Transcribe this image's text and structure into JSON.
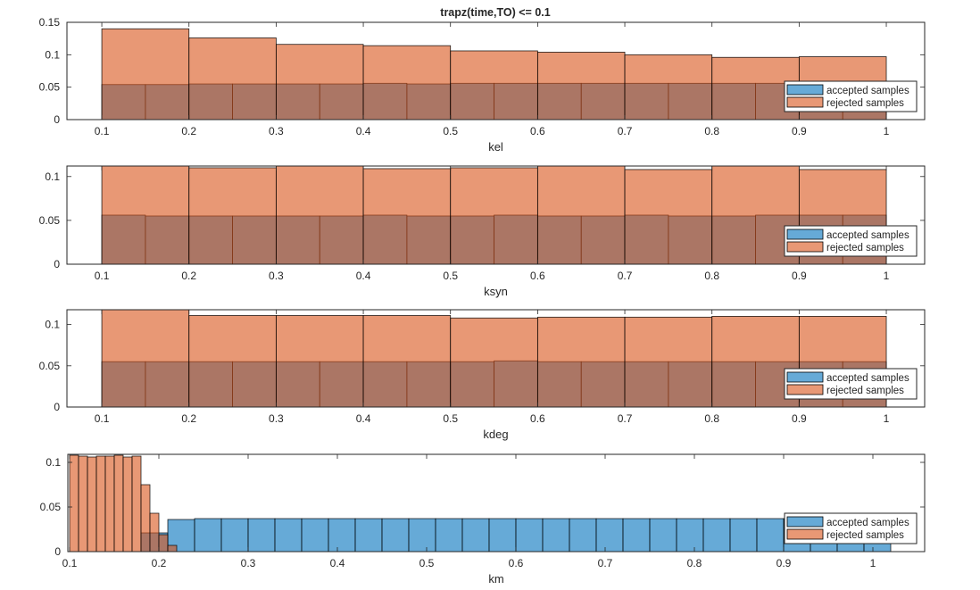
{
  "figure_title": "trapz(time,TO) <= 0.1",
  "colors": {
    "accepted": "#0072BD",
    "rejected": "#D95319",
    "face_alpha": 0.6
  },
  "chart_data": [
    {
      "type": "bar",
      "subtype": "histogram",
      "title": "trapz(time,TO) <= 0.1",
      "xlabel": "kel",
      "xlim": [
        0.06,
        1.044
      ],
      "ylim": [
        0,
        0.15
      ],
      "xticks": [
        "0.1",
        "0.2",
        "0.3",
        "0.4",
        "0.5",
        "0.6",
        "0.7",
        "0.8",
        "0.9",
        "1"
      ],
      "yticks": [
        "0",
        "0.05",
        "0.1",
        "0.15"
      ],
      "legend": {
        "placement": "bottom-right",
        "entries": [
          "accepted samples",
          "rejected samples"
        ]
      },
      "series": [
        {
          "name": "accepted samples",
          "bin_start": 0.1,
          "bin_width": 0.05,
          "values": [
            0.054,
            0.054,
            0.055,
            0.055,
            0.055,
            0.055,
            0.056,
            0.055,
            0.056,
            0.056,
            0.056,
            0.056,
            0.056,
            0.056,
            0.056,
            0.056,
            0.056,
            0.056
          ]
        },
        {
          "name": "rejected samples",
          "bin_start": 0.1,
          "bin_width": 0.1,
          "values": [
            0.14,
            0.126,
            0.116,
            0.114,
            0.106,
            0.104,
            0.1,
            0.096,
            0.097
          ]
        }
      ]
    },
    {
      "type": "bar",
      "subtype": "histogram",
      "xlabel": "ksyn",
      "xlim": [
        0.06,
        1.044
      ],
      "ylim": [
        0,
        0.112
      ],
      "xticks": [
        "0.1",
        "0.2",
        "0.3",
        "0.4",
        "0.5",
        "0.6",
        "0.7",
        "0.8",
        "0.9",
        "1"
      ],
      "yticks": [
        "0",
        "0.05",
        "0.1"
      ],
      "legend": {
        "placement": "bottom-right",
        "entries": [
          "accepted samples",
          "rejected samples"
        ]
      },
      "series": [
        {
          "name": "accepted samples",
          "bin_start": 0.1,
          "bin_width": 0.05,
          "values": [
            0.056,
            0.055,
            0.055,
            0.055,
            0.055,
            0.055,
            0.056,
            0.055,
            0.055,
            0.056,
            0.055,
            0.055,
            0.056,
            0.055,
            0.055,
            0.056,
            0.056,
            0.056
          ]
        },
        {
          "name": "rejected samples",
          "bin_start": 0.1,
          "bin_width": 0.1,
          "values": [
            0.113,
            0.11,
            0.113,
            0.109,
            0.11,
            0.113,
            0.108,
            0.113,
            0.108
          ]
        }
      ]
    },
    {
      "type": "bar",
      "subtype": "histogram",
      "xlabel": "kdeg",
      "xlim": [
        0.06,
        1.044
      ],
      "ylim": [
        0,
        0.118
      ],
      "xticks": [
        "0.1",
        "0.2",
        "0.3",
        "0.4",
        "0.5",
        "0.6",
        "0.7",
        "0.8",
        "0.9",
        "1"
      ],
      "yticks": [
        "0",
        "0.05",
        "0.1"
      ],
      "legend": {
        "placement": "bottom-right",
        "entries": [
          "accepted samples",
          "rejected samples"
        ]
      },
      "series": [
        {
          "name": "accepted samples",
          "bin_start": 0.1,
          "bin_width": 0.05,
          "values": [
            0.055,
            0.055,
            0.055,
            0.055,
            0.055,
            0.055,
            0.055,
            0.055,
            0.055,
            0.056,
            0.055,
            0.055,
            0.055,
            0.055,
            0.055,
            0.055,
            0.055,
            0.055
          ]
        },
        {
          "name": "rejected samples",
          "bin_start": 0.1,
          "bin_width": 0.1,
          "values": [
            0.12,
            0.111,
            0.111,
            0.111,
            0.108,
            0.109,
            0.109,
            0.11,
            0.11
          ]
        }
      ]
    },
    {
      "type": "bar",
      "subtype": "histogram",
      "xlabel": "km",
      "xlim": [
        0.098,
        1.058
      ],
      "ylim": [
        0,
        0.109
      ],
      "xticks": [
        "0.1",
        "0.2",
        "0.3",
        "0.4",
        "0.5",
        "0.6",
        "0.7",
        "0.8",
        "0.9",
        "1"
      ],
      "yticks": [
        "0",
        "0.05",
        "0.1"
      ],
      "legend": {
        "placement": "bottom-right",
        "entries": [
          "accepted samples",
          "rejected samples"
        ]
      },
      "series": [
        {
          "name": "accepted samples",
          "bin_start": 0.18,
          "bin_width": 0.03,
          "values": [
            0.021,
            0.036,
            0.037,
            0.037,
            0.037,
            0.037,
            0.037,
            0.037,
            0.037,
            0.037,
            0.037,
            0.037,
            0.037,
            0.037,
            0.037,
            0.037,
            0.037,
            0.037,
            0.037,
            0.037,
            0.037,
            0.037,
            0.037,
            0.037,
            0.037,
            0.037,
            0.037,
            0.037
          ]
        },
        {
          "name": "rejected samples",
          "bin_start": 0.1,
          "bin_width": 0.01,
          "values": [
            0.108,
            0.107,
            0.106,
            0.107,
            0.107,
            0.108,
            0.106,
            0.107,
            0.075,
            0.043,
            0.019,
            0.007
          ]
        }
      ]
    }
  ]
}
